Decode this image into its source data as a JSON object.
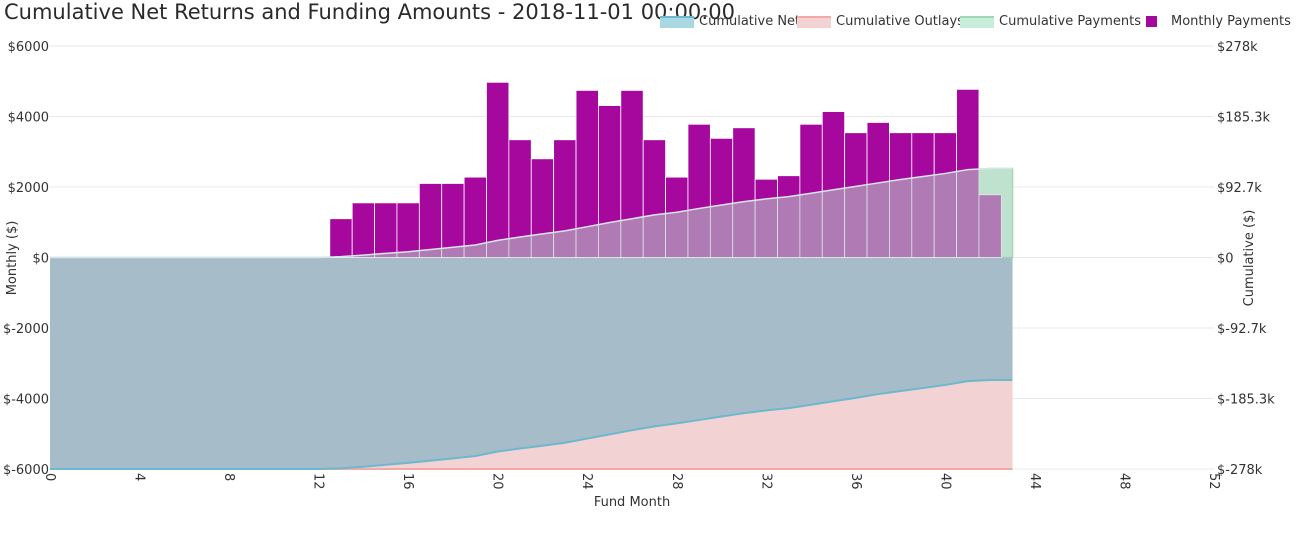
{
  "chart_data": {
    "type": "bar",
    "title": "Cumulative Net Returns and Funding Amounts - 2018-11-01 00:00:00",
    "xlabel": "Fund Month",
    "ylabel": "Monthly ($)",
    "y2label": "Cumulative ($)",
    "xlim": [
      0,
      52
    ],
    "ylim": [
      -6000,
      6000
    ],
    "y2lim": [
      -278000,
      278000
    ],
    "x_ticks": [
      "0",
      "4",
      "8",
      "12",
      "16",
      "20",
      "24",
      "28",
      "32",
      "36",
      "40",
      "44",
      "48",
      "52"
    ],
    "y_ticks": [
      "$-6000",
      "$-4000",
      "$-2000",
      "$0",
      "$2000",
      "$4000",
      "$6000"
    ],
    "y2_ticks": [
      "$-278k",
      "$-185.3k",
      "$-92.7k",
      "$0",
      "$92.7k",
      "$185.3k",
      "$278k"
    ],
    "grid": true,
    "legend": "top-right",
    "colors": {
      "net_fill": "#a7bcc9",
      "net_line": "#6bb8cf",
      "outlays_fill": "#f2d2d2",
      "outlays_line": "#f0a8a8",
      "payments_fill": "#c8eed9",
      "payments_line": "#9ad8b6",
      "monthly": "#a6089e",
      "monthly_overlap": "#a179a8"
    },
    "series": [
      {
        "name": "Cumulative Net",
        "axis": "y2",
        "x": [
          0,
          4,
          8,
          12,
          13,
          14,
          15,
          16,
          17,
          18,
          19,
          20,
          21,
          22,
          23,
          24,
          25,
          26,
          27,
          28,
          29,
          30,
          31,
          32,
          33,
          34,
          35,
          36,
          37,
          38,
          39,
          40,
          41,
          42,
          43
        ],
        "values": [
          -278000,
          -278000,
          -278000,
          -278000,
          -277000,
          -275000,
          -272500,
          -270000,
          -267000,
          -264000,
          -261000,
          -255000,
          -251000,
          -247500,
          -243500,
          -238000,
          -232500,
          -227000,
          -222000,
          -218000,
          -213500,
          -209000,
          -204500,
          -201000,
          -198000,
          -193500,
          -189000,
          -184500,
          -179500,
          -175500,
          -171500,
          -167500,
          -162500,
          -161000,
          -161000
        ]
      },
      {
        "name": "Cumulative Outlays",
        "axis": "y2",
        "x": [
          0,
          43
        ],
        "values": [
          -278000,
          -278000
        ]
      },
      {
        "name": "Cumulative Payments",
        "axis": "y2",
        "x": [
          0,
          12,
          13,
          14,
          15,
          16,
          17,
          18,
          19,
          20,
          21,
          22,
          23,
          24,
          25,
          26,
          27,
          28,
          29,
          30,
          31,
          32,
          33,
          34,
          35,
          36,
          37,
          38,
          39,
          40,
          41,
          42,
          43
        ],
        "values": [
          0,
          0,
          1100,
          3200,
          5500,
          7500,
          10500,
          13500,
          16500,
          22500,
          27000,
          31000,
          35000,
          40500,
          46000,
          51000,
          56000,
          59500,
          64500,
          69000,
          73500,
          77000,
          80000,
          84500,
          89000,
          93500,
          98000,
          102500,
          106500,
          110500,
          115500,
          117000,
          117000
        ]
      },
      {
        "name": "Monthly Payments",
        "axis": "y",
        "type": "bar",
        "x": [
          13,
          14,
          15,
          16,
          17,
          18,
          19,
          20,
          21,
          22,
          23,
          24,
          25,
          26,
          27,
          28,
          29,
          30,
          31,
          32,
          33,
          34,
          35,
          36,
          37,
          38,
          39,
          40,
          41,
          42
        ],
        "values": [
          1100,
          1550,
          1550,
          1550,
          2100,
          2100,
          2280,
          4970,
          3340,
          2800,
          3340,
          4740,
          4310,
          4740,
          3340,
          2280,
          3780,
          3380,
          3680,
          2220,
          2320,
          3780,
          4140,
          3540,
          3830,
          3540,
          3540,
          3540,
          4770,
          1780
        ]
      }
    ]
  }
}
